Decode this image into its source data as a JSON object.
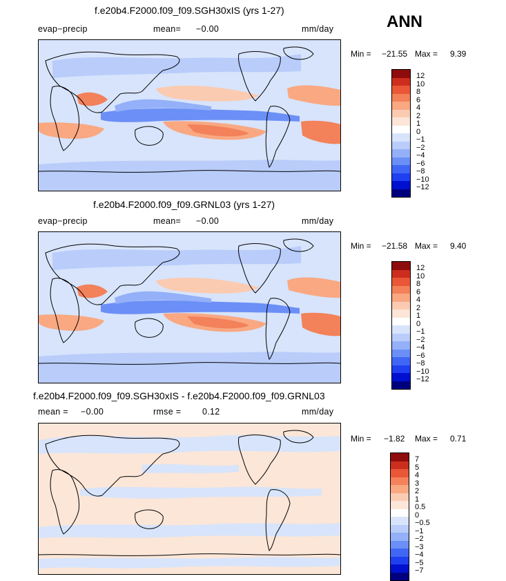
{
  "season": "ANN",
  "colors": {
    "scale": [
      "#00007f",
      "#0010cf",
      "#1f3ff0",
      "#3f66f4",
      "#6b8ff6",
      "#94b0f8",
      "#b9ccfa",
      "#d7e4fb",
      "#fbe6d8",
      "#fbcbb1",
      "#f9a882",
      "#f3815a",
      "#e95736",
      "#cc2e1e",
      "#8e0c0c"
    ],
    "ocean_neutral": "#d7e4fb",
    "diff_pos": "#fbe6d8",
    "diff_neg": "#d7e4fb"
  },
  "panels": [
    {
      "title": "f.e20b4.F2000.f09_f09.SGH30xIS (yrs 1-27)",
      "variable": "evap−precip",
      "mean_label": "mean=",
      "mean_value": "−0.00",
      "units": "mm/day",
      "min_label": "Min =",
      "min_value": "−21.55",
      "max_label": "Max =",
      "max_value": "9.39",
      "colorbar_labels": [
        "12",
        "10",
        "8",
        "6",
        "4",
        "2",
        "1",
        "0",
        "−1",
        "−2",
        "−4",
        "−6",
        "−8",
        "−10",
        "−12"
      ]
    },
    {
      "title": "f.e20b4.F2000.f09_f09.GRNL03 (yrs 1-27)",
      "variable": "evap−precip",
      "mean_label": "mean=",
      "mean_value": "−0.00",
      "units": "mm/day",
      "min_label": "Min =",
      "min_value": "−21.58",
      "max_label": "Max =",
      "max_value": "9.40",
      "colorbar_labels": [
        "12",
        "10",
        "8",
        "6",
        "4",
        "2",
        "1",
        "0",
        "−1",
        "−2",
        "−4",
        "−6",
        "−8",
        "−10",
        "−12"
      ]
    },
    {
      "title": "f.e20b4.F2000.f09_f09.SGH30xIS - f.e20b4.F2000.f09_f09.GRNL03",
      "mean_label": "mean =",
      "mean_value": "−0.00",
      "rmse_label": "rmse =",
      "rmse_value": "0.12",
      "units": "mm/day",
      "min_label": "Min =",
      "min_value": "−1.82",
      "max_label": "Max =",
      "max_value": "0.71",
      "colorbar_labels": [
        "7",
        "5",
        "4",
        "3",
        "2",
        "1",
        "0.5",
        "0",
        "−0.5",
        "−1",
        "−2",
        "−3",
        "−4",
        "−5",
        "−7"
      ]
    }
  ]
}
